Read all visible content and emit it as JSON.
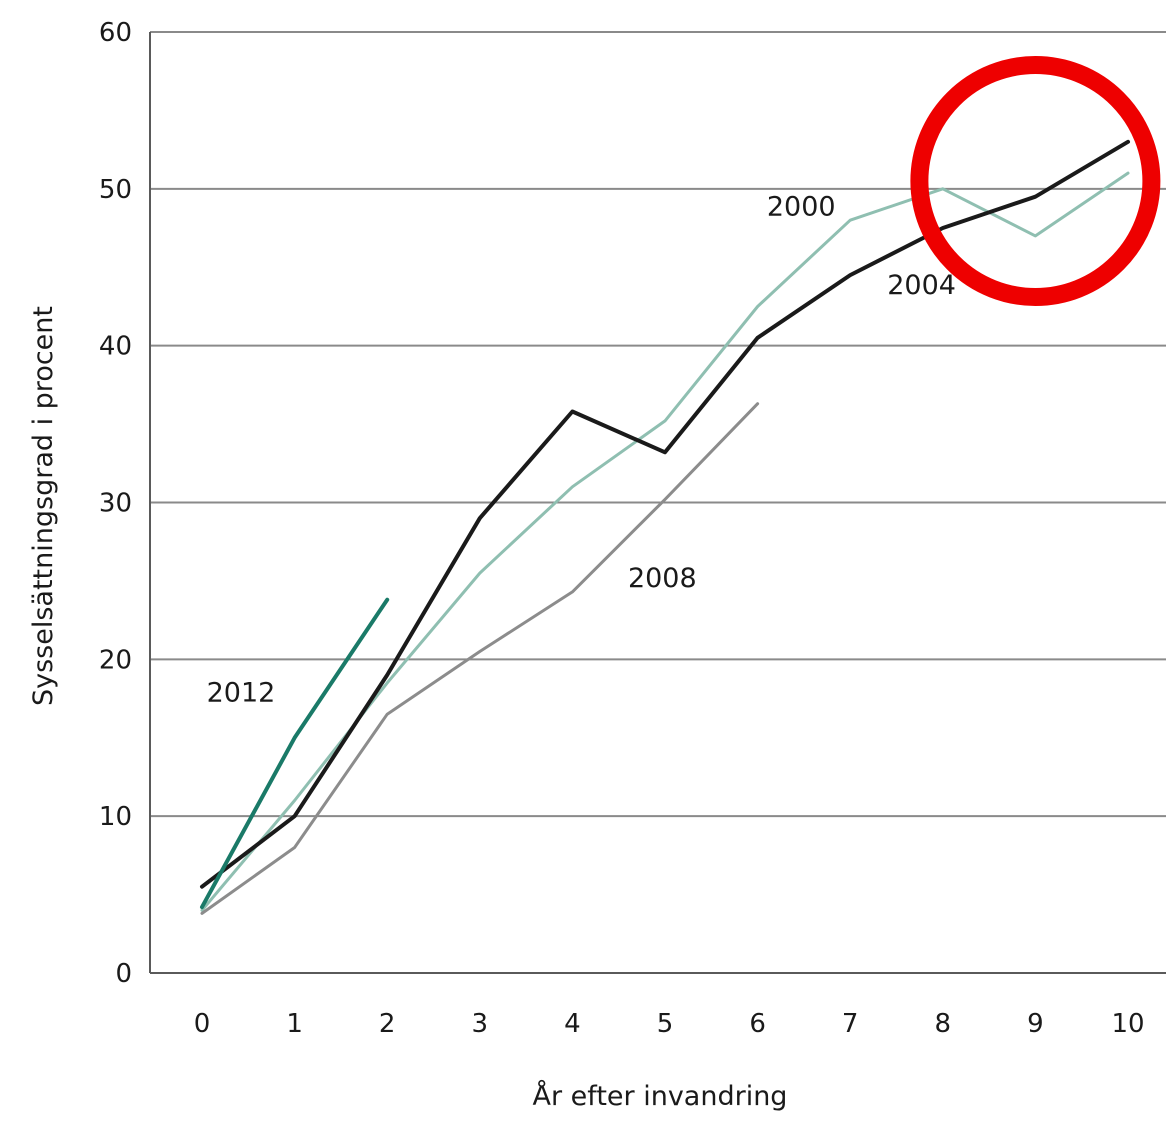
{
  "chart_data": {
    "type": "line",
    "xlabel": "År efter invandring",
    "ylabel": "Sysselsättningsgrad i procent",
    "xlim": [
      0,
      10
    ],
    "ylim": [
      0,
      60
    ],
    "x_ticks": [
      "0",
      "1",
      "2",
      "3",
      "4",
      "5",
      "6",
      "7",
      "8",
      "9",
      "10"
    ],
    "y_ticks": [
      "0",
      "10",
      "20",
      "30",
      "40",
      "50",
      "60"
    ],
    "grid": true,
    "series": [
      {
        "name": "2000",
        "color": "#8fbfb1",
        "x": [
          0,
          1,
          2,
          3,
          4,
          5,
          6,
          7,
          8,
          9,
          10
        ],
        "values": [
          4,
          11,
          18.5,
          25.5,
          31,
          35.2,
          42.5,
          48,
          50,
          47,
          51
        ]
      },
      {
        "name": "2004",
        "color": "#1a1a1a",
        "x": [
          0,
          1,
          2,
          3,
          4,
          5,
          6,
          7,
          8,
          9,
          10
        ],
        "values": [
          5.5,
          10,
          19,
          29,
          35.8,
          33.2,
          40.5,
          44.5,
          47.5,
          49.5,
          53
        ]
      },
      {
        "name": "2008",
        "color": "#8c8c8c",
        "x": [
          0,
          1,
          2,
          3,
          4,
          5,
          6
        ],
        "values": [
          3.8,
          8,
          16.5,
          20.5,
          24.3,
          30.2,
          36.3
        ]
      },
      {
        "name": "2012",
        "color": "#1a7a68",
        "x": [
          0,
          1,
          2
        ],
        "values": [
          4.2,
          15,
          23.8
        ]
      }
    ],
    "series_labels": [
      {
        "text": "2000",
        "series": "2000",
        "at_x": 6.1,
        "at_y": 48.3
      },
      {
        "text": "2004",
        "series": "2004",
        "at_x": 7.4,
        "at_y": 43.3
      },
      {
        "text": "2008",
        "series": "2008",
        "at_x": 4.6,
        "at_y": 24.6
      },
      {
        "text": "2012",
        "series": "2012",
        "at_x": 0.05,
        "at_y": 17.3
      }
    ],
    "annotation": {
      "type": "circle",
      "color": "#ee0000",
      "center_x": 9,
      "center_y": 50.5,
      "label": "highlight"
    }
  }
}
